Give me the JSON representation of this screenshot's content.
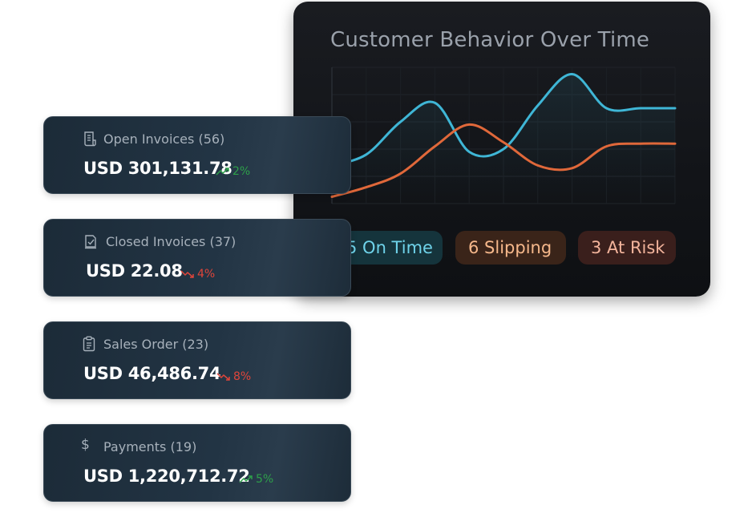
{
  "chart_card": {
    "title": "Customer Behavior Over Time",
    "pills": {
      "on_time": "5 On Time",
      "slipping": "6 Slipping",
      "at_risk": "3 At Risk"
    },
    "colors": {
      "series_a": "#3fb6d6",
      "series_b": "#e0683a"
    }
  },
  "chart_data": {
    "type": "line",
    "title": "Customer Behavior Over Time",
    "xlabel": "",
    "ylabel": "",
    "grid": true,
    "x": [
      0,
      1,
      2,
      3,
      4,
      5,
      6,
      7,
      8,
      9,
      10
    ],
    "ylim": [
      0,
      1
    ],
    "series": [
      {
        "name": "",
        "color": "#3fb6d6",
        "values": [
          0.28,
          0.36,
          0.6,
          0.74,
          0.38,
          0.4,
          0.72,
          0.95,
          0.7,
          0.7,
          0.7
        ]
      },
      {
        "name": "",
        "color": "#e0683a",
        "values": [
          0.05,
          0.12,
          0.22,
          0.42,
          0.58,
          0.45,
          0.28,
          0.26,
          0.42,
          0.44,
          0.44
        ]
      }
    ]
  },
  "cards": [
    {
      "label": "Open Invoices (56)",
      "icon": "receipt-icon",
      "value": "USD 301,131.78",
      "trend": "2%",
      "direction": "up"
    },
    {
      "label": "Closed Invoices (37)",
      "icon": "checked-document-icon",
      "value": "USD 22.08",
      "trend": "4%",
      "direction": "down"
    },
    {
      "label": "Sales Order (23)",
      "icon": "clipboard-icon",
      "value": "USD 46,486.74",
      "trend": "8%",
      "direction": "down"
    },
    {
      "label": "Payments (19)",
      "icon": "dollar-icon",
      "value": "USD 1,220,712.72",
      "trend": "5%",
      "direction": "up"
    }
  ]
}
